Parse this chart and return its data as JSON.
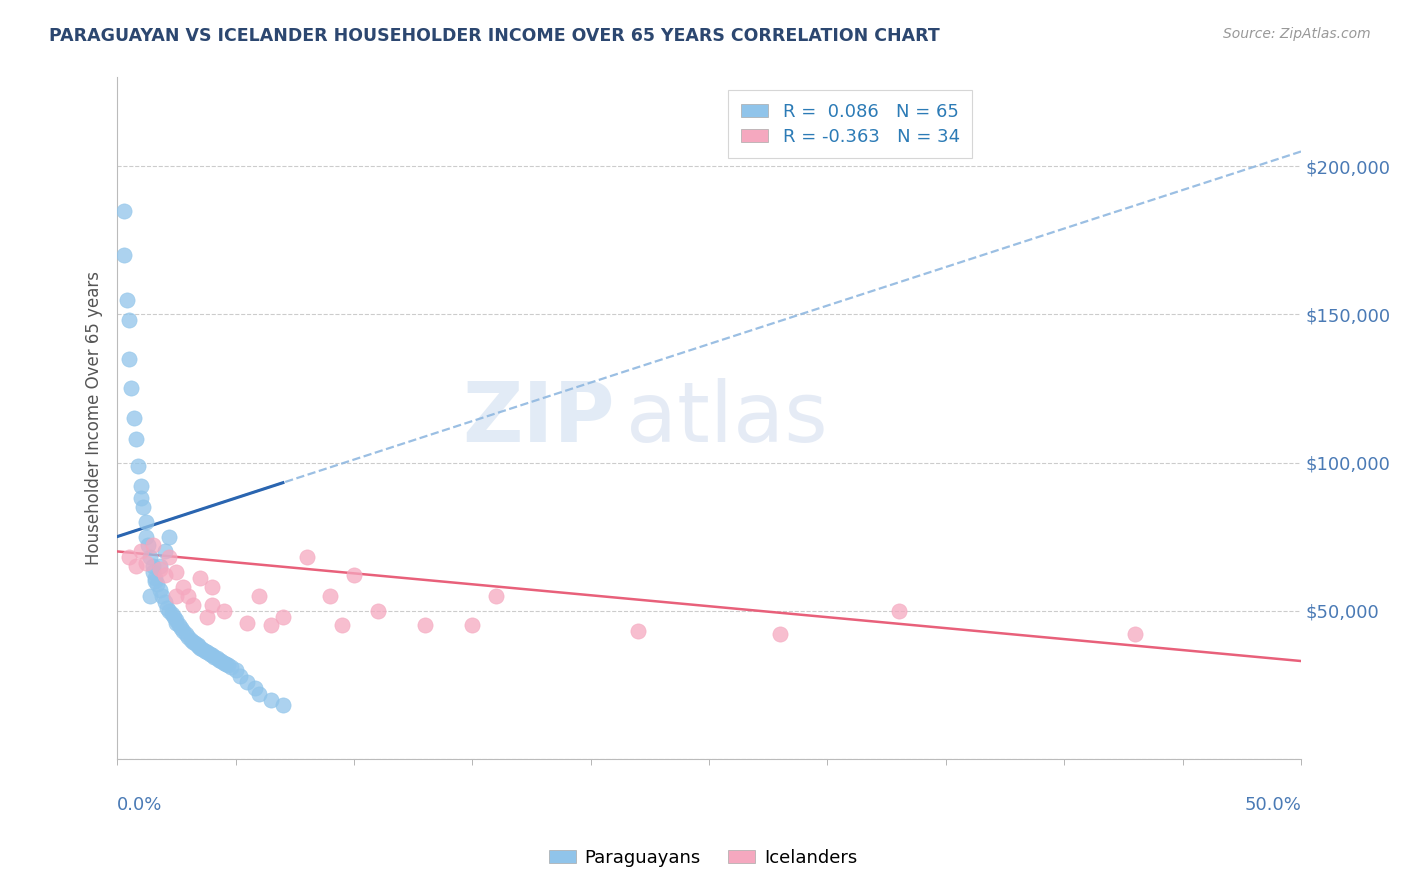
{
  "title": "PARAGUAYAN VS ICELANDER HOUSEHOLDER INCOME OVER 65 YEARS CORRELATION CHART",
  "source": "Source: ZipAtlas.com",
  "ylabel": "Householder Income Over 65 years",
  "xlim": [
    0.0,
    0.5
  ],
  "ylim": [
    0,
    230000
  ],
  "ytick_vals": [
    0,
    50000,
    100000,
    150000,
    200000
  ],
  "ytick_labels": [
    "",
    "$50,000",
    "$100,000",
    "$150,000",
    "$200,000"
  ],
  "paraguayan_color": "#90c4ea",
  "icelander_color": "#f5a8bf",
  "trendline_paraguayan_dashed_color": "#90b8e0",
  "trendline_paraguayan_solid_color": "#2a65b0",
  "trendline_icelander_color": "#e8607a",
  "R_paraguayan": 0.086,
  "N_paraguayan": 65,
  "R_icelander": -0.363,
  "N_icelander": 34,
  "watermark_zip": "ZIP",
  "watermark_atlas": "atlas",
  "title_color": "#2c4770",
  "axis_label_color": "#4a7ab5",
  "legend_color": "#2c7bb6",
  "paraguayan_x": [
    0.003,
    0.003,
    0.004,
    0.005,
    0.005,
    0.006,
    0.007,
    0.008,
    0.009,
    0.01,
    0.01,
    0.011,
    0.012,
    0.012,
    0.013,
    0.014,
    0.015,
    0.015,
    0.016,
    0.017,
    0.018,
    0.019,
    0.02,
    0.021,
    0.022,
    0.023,
    0.024,
    0.025,
    0.025,
    0.026,
    0.027,
    0.028,
    0.029,
    0.03,
    0.031,
    0.032,
    0.033,
    0.034,
    0.034,
    0.035,
    0.036,
    0.037,
    0.038,
    0.039,
    0.04,
    0.041,
    0.042,
    0.043,
    0.044,
    0.045,
    0.046,
    0.047,
    0.048,
    0.05,
    0.052,
    0.055,
    0.058,
    0.06,
    0.065,
    0.07,
    0.02,
    0.022,
    0.018,
    0.016,
    0.014
  ],
  "paraguayan_y": [
    185000,
    170000,
    155000,
    148000,
    135000,
    125000,
    115000,
    108000,
    99000,
    92000,
    88000,
    85000,
    80000,
    75000,
    72000,
    68000,
    65000,
    63000,
    61000,
    59000,
    57000,
    55000,
    53000,
    51000,
    50000,
    49000,
    48000,
    47000,
    46000,
    45000,
    44000,
    43000,
    42000,
    41000,
    40000,
    39500,
    39000,
    38500,
    38000,
    37500,
    37000,
    36500,
    36000,
    35500,
    35000,
    34500,
    34000,
    33500,
    33000,
    32500,
    32000,
    31500,
    31000,
    30000,
    28000,
    26000,
    24000,
    22000,
    20000,
    18000,
    70000,
    75000,
    65000,
    60000,
    55000
  ],
  "icelander_x": [
    0.005,
    0.008,
    0.01,
    0.012,
    0.015,
    0.018,
    0.02,
    0.022,
    0.025,
    0.025,
    0.028,
    0.03,
    0.032,
    0.035,
    0.038,
    0.04,
    0.04,
    0.045,
    0.055,
    0.06,
    0.065,
    0.07,
    0.08,
    0.09,
    0.095,
    0.1,
    0.11,
    0.13,
    0.15,
    0.16,
    0.22,
    0.28,
    0.33,
    0.43
  ],
  "icelander_y": [
    68000,
    65000,
    70000,
    66000,
    72000,
    64000,
    62000,
    68000,
    55000,
    63000,
    58000,
    55000,
    52000,
    61000,
    48000,
    58000,
    52000,
    50000,
    46000,
    55000,
    45000,
    48000,
    68000,
    55000,
    45000,
    62000,
    50000,
    45000,
    45000,
    55000,
    43000,
    42000,
    50000,
    42000
  ],
  "trendline_p_x0": 0.0,
  "trendline_p_y0": 75000,
  "trendline_p_x1": 0.5,
  "trendline_p_y1": 205000,
  "trendline_i_x0": 0.0,
  "trendline_i_y0": 70000,
  "trendline_i_x1": 0.5,
  "trendline_i_y1": 33000
}
